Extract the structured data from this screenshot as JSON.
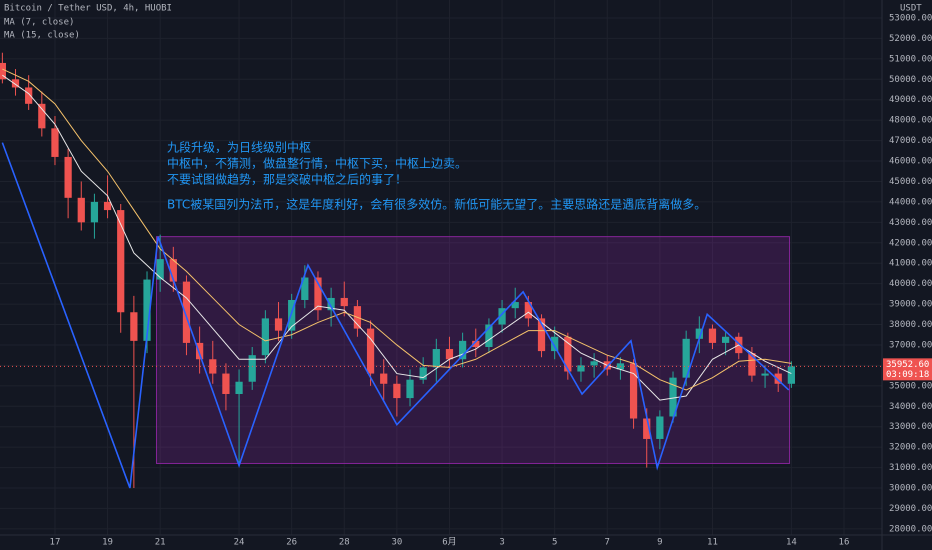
{
  "header": {
    "symbol": "Bitcoin / Tether USD, 4h, HUOBI",
    "currency": "USDT"
  },
  "chart_data": {
    "type": "candlestick",
    "up_color": "#26a69a",
    "down_color": "#ef5350",
    "x": [
      15,
      15.5,
      16,
      16.5,
      17,
      17.5,
      18,
      18.5,
      19,
      19.5,
      20,
      20.5,
      21,
      21.5,
      22,
      22.5,
      23,
      23.5,
      24,
      24.5,
      25,
      25.5,
      26,
      26.5,
      27,
      27.5,
      28,
      28.5,
      29,
      29.5,
      30,
      30.5,
      31,
      31.5,
      32,
      32.5,
      33,
      33.5,
      34,
      34.5,
      35,
      35.5,
      36,
      36.5,
      37,
      37.5,
      38,
      38.5,
      39,
      39.5,
      40,
      40.5,
      41,
      41.5,
      42,
      42.5,
      43,
      43.5,
      44,
      44.5,
      45
    ],
    "open": [
      50800,
      50000,
      49600,
      48800,
      47600,
      46200,
      44200,
      43000,
      44000,
      43600,
      38600,
      37200,
      40200,
      41200,
      40100,
      37100,
      36300,
      35600,
      34600,
      35200,
      36500,
      38300,
      37700,
      39200,
      40300,
      38700,
      39300,
      38900,
      37800,
      35600,
      35100,
      34400,
      35300,
      35900,
      36800,
      36300,
      37200,
      36900,
      38000,
      38800,
      39100,
      38300,
      36700,
      37400,
      35700,
      36000,
      36200,
      35800,
      36100,
      33400,
      32400,
      33500,
      35400,
      37300,
      37800,
      37100,
      37400,
      36600,
      35500,
      35600,
      35100
    ],
    "high": [
      51300,
      50500,
      50200,
      49400,
      48200,
      46600,
      45000,
      44400,
      45300,
      43900,
      39400,
      40600,
      42400,
      41800,
      40400,
      37900,
      37200,
      36100,
      35800,
      36900,
      38700,
      39100,
      39500,
      40900,
      40600,
      39800,
      40100,
      39200,
      38200,
      36300,
      35500,
      35800,
      36400,
      37300,
      37400,
      37600,
      37800,
      38300,
      39200,
      39800,
      39400,
      38500,
      37900,
      37600,
      36400,
      36600,
      36500,
      36400,
      36300,
      33900,
      33800,
      35700,
      37700,
      38400,
      38000,
      37700,
      37600,
      36900,
      36000,
      35900,
      36200
    ],
    "low": [
      49800,
      49200,
      48500,
      47200,
      45800,
      43200,
      42600,
      42200,
      43200,
      37600,
      30000,
      36600,
      39600,
      39600,
      36500,
      35600,
      35100,
      33800,
      31100,
      34800,
      36100,
      37200,
      37300,
      38800,
      38200,
      37900,
      38400,
      37400,
      35000,
      34300,
      33500,
      34000,
      35100,
      35200,
      35800,
      35900,
      36400,
      36600,
      37600,
      38300,
      37900,
      36400,
      36300,
      35300,
      35200,
      35400,
      35500,
      35300,
      32900,
      31000,
      31900,
      33200,
      35000,
      36600,
      36800,
      36500,
      36300,
      35200,
      34900,
      34700,
      34900
    ],
    "close": [
      50000,
      49600,
      48800,
      47600,
      46200,
      44200,
      43000,
      44000,
      43600,
      38600,
      37200,
      40200,
      41200,
      40100,
      37100,
      36300,
      35600,
      34600,
      35200,
      36500,
      38300,
      37700,
      39200,
      40300,
      38700,
      39300,
      38900,
      37800,
      35600,
      35100,
      34400,
      35300,
      35900,
      36800,
      36300,
      37200,
      36900,
      38000,
      38800,
      39100,
      38300,
      36700,
      37400,
      35700,
      36000,
      36200,
      35800,
      36100,
      33400,
      32400,
      33500,
      35400,
      37300,
      37800,
      37100,
      37400,
      36600,
      35500,
      35600,
      35100,
      35952.6
    ],
    "series": [
      {
        "name": "MA (7, close)",
        "color": "#e8e8e8",
        "x": [
          15,
          16,
          17,
          18,
          19,
          20,
          21,
          22,
          23,
          24,
          25,
          26,
          27,
          28,
          29,
          30,
          31,
          32,
          33,
          34,
          35,
          36,
          37,
          38,
          39,
          40,
          41,
          42,
          43,
          44,
          45
        ],
        "values": [
          50200,
          49300,
          47800,
          45500,
          44300,
          41500,
          40300,
          39300,
          37800,
          36300,
          36300,
          37900,
          38900,
          38700,
          37300,
          35600,
          35400,
          36300,
          36800,
          37700,
          38600,
          37600,
          36600,
          36000,
          35600,
          34300,
          34500,
          36300,
          37000,
          36200,
          35600
        ]
      },
      {
        "name": "MA (15, close)",
        "color": "#f5c26b",
        "x": [
          15,
          16,
          17,
          18,
          19,
          20,
          21,
          22,
          23,
          24,
          25,
          26,
          27,
          28,
          29,
          30,
          31,
          32,
          33,
          34,
          35,
          36,
          37,
          38,
          39,
          40,
          41,
          42,
          43,
          44,
          45
        ],
        "values": [
          50500,
          49900,
          48800,
          47000,
          45500,
          43600,
          41700,
          40600,
          39300,
          38000,
          37200,
          37500,
          38100,
          38600,
          38100,
          37000,
          36000,
          35900,
          36300,
          37000,
          37700,
          37700,
          37100,
          36500,
          36100,
          35300,
          34800,
          35400,
          36200,
          36300,
          36100
        ]
      }
    ],
    "zigzag": {
      "color": "#2962ff",
      "x": [
        15,
        19.85,
        20.92,
        24,
        26.62,
        30,
        34.8,
        37.04,
        38.9,
        39.9,
        41.8,
        44.9
      ],
      "values": [
        46900,
        30000,
        42300,
        31100,
        40900,
        33100,
        39600,
        34600,
        37200,
        31000,
        38500,
        34800
      ]
    },
    "box": {
      "color": "#9c27b0",
      "x": [
        20.86,
        44.93
      ],
      "y": [
        31200,
        42300
      ]
    },
    "last_price": {
      "value": 35952.6,
      "label": "35952.60"
    },
    "countdown": "03:09:18",
    "annotations": [
      "九段升级，为日线级别中枢",
      "中枢中，不猜测，做盘整行情，中枢下买，中枢上边卖。",
      "不要试图做趋势，那是突破中枢之后的事了！",
      "BTC被某国列为法币，这是年度利好，会有很多效仿。新低可能无望了。主要思路还是遇底背离做多。"
    ],
    "xlim": [
      14.91,
      48.37
    ],
    "xticks": [
      17,
      19,
      21,
      24,
      26,
      28,
      30,
      {
        "value": 32,
        "label": "6月"
      },
      {
        "value": 34,
        "label": "3"
      },
      {
        "value": 36,
        "label": "5"
      },
      {
        "value": 38,
        "label": "7"
      },
      {
        "value": 40,
        "label": "9"
      },
      {
        "value": 42,
        "label": "11"
      },
      {
        "value": 45,
        "label": "14"
      },
      {
        "value": 47,
        "label": "16"
      }
    ],
    "ylim": [
      27700,
      53880
    ],
    "yticks": [
      {
        "value": 28000,
        "label": "28000.00"
      },
      {
        "value": 29000,
        "label": "29000.00"
      },
      {
        "value": 30000,
        "label": "30000.00"
      },
      {
        "value": 31000,
        "label": "31000.00"
      },
      {
        "value": 32000,
        "label": "32000.00"
      },
      {
        "value": 33000,
        "label": "33000.00"
      },
      {
        "value": 34000,
        "label": "34000.00"
      },
      {
        "value": 35000,
        "label": "35000.00"
      },
      {
        "value": 36000,
        "label": "36000.00"
      },
      {
        "value": 37000,
        "label": "37000.00"
      },
      {
        "value": 38000,
        "label": "38000.00"
      },
      {
        "value": 39000,
        "label": "39000.00"
      },
      {
        "value": 40000,
        "label": "40000.00"
      },
      {
        "value": 41000,
        "label": "41000.00"
      },
      {
        "value": 42000,
        "label": "42000.00"
      },
      {
        "value": 43000,
        "label": "43000.00"
      },
      {
        "value": 44000,
        "label": "44000.00"
      },
      {
        "value": 45000,
        "label": "45000.00"
      },
      {
        "value": 46000,
        "label": "46000.00"
      },
      {
        "value": 47000,
        "label": "47000.00"
      },
      {
        "value": 48000,
        "label": "48000.00"
      },
      {
        "value": 49000,
        "label": "49000.00"
      },
      {
        "value": 50000,
        "label": "50000.00"
      },
      {
        "value": 51000,
        "label": "51000.00"
      },
      {
        "value": 52000,
        "label": "52000.00"
      },
      {
        "value": 53000,
        "label": "53000.00"
      }
    ],
    "grid": true
  }
}
